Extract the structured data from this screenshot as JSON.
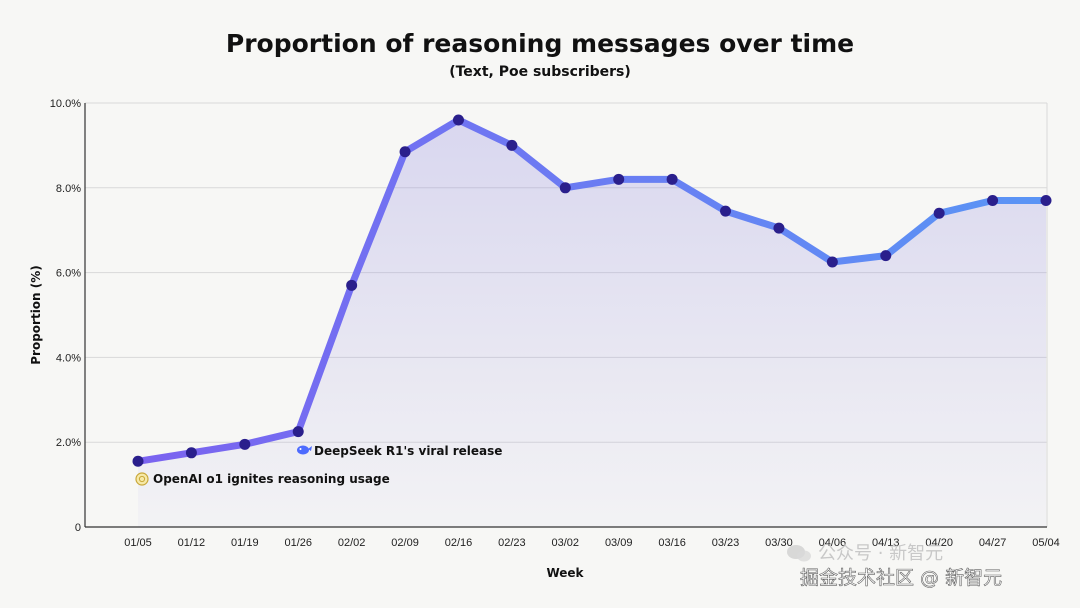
{
  "chart_data": {
    "type": "line",
    "title": "Proportion of reasoning messages over time",
    "subtitle": "(Text, Poe subscribers)",
    "xlabel": "Week",
    "ylabel": "Proportion (%)",
    "ylim": [
      0,
      10
    ],
    "yticks": [
      0,
      2,
      4,
      6,
      8,
      10
    ],
    "ytick_labels": [
      "0",
      "2.0%",
      "4.0%",
      "6.0%",
      "8.0%",
      "10.0%"
    ],
    "grid": true,
    "categories": [
      "01/05",
      "01/12",
      "01/19",
      "01/26",
      "02/02",
      "02/09",
      "02/16",
      "02/23",
      "03/02",
      "03/09",
      "03/16",
      "03/23",
      "03/30",
      "04/06",
      "04/13",
      "04/20",
      "04/27",
      "05/04"
    ],
    "series": [
      {
        "values": [
          1.55,
          1.75,
          1.95,
          2.25,
          5.7,
          8.85,
          9.6,
          9.0,
          8.0,
          8.2,
          8.2,
          7.45,
          7.05,
          6.25,
          6.4,
          7.4,
          7.7,
          7.7
        ],
        "line_start_color": "#7b63f0",
        "line_end_color": "#5a95f5",
        "marker_color": "#2a1f8c"
      }
    ],
    "annotations": [
      {
        "text": "OpenAI o1 ignites reasoning usage",
        "x": "01/05",
        "icon": "openai-logo-icon"
      },
      {
        "text": "DeepSeek R1's viral release",
        "x": "01/26",
        "icon": "deepseek-whale-icon"
      }
    ]
  },
  "watermark": {
    "line1": "公众号 · 新智元",
    "line2": "掘金技术社区 @ 新智元"
  }
}
